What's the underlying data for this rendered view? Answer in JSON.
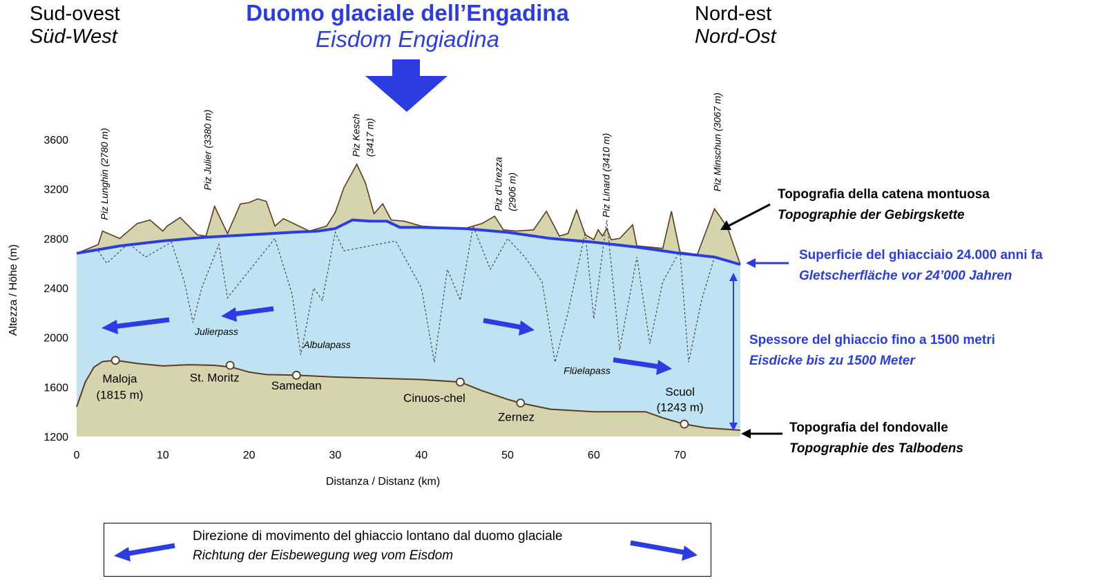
{
  "corner_left": {
    "it": "Sud-ovest",
    "de": "Süd-West"
  },
  "corner_right": {
    "it": "Nord-est",
    "de": "Nord-Ost"
  },
  "title": {
    "it": "Duomo glaciale dell’Engadina",
    "de": "Eisdom Engiadina"
  },
  "colors": {
    "ice": "#bfe3f2",
    "rock": "#d6d4ad",
    "outline": "#5b3a1e",
    "arrow": "#2b3de0",
    "axis": "#000000"
  },
  "annotations": {
    "mountain_topo": {
      "it": "Topografia della catena montuosa",
      "de": "Topographie der Gebirgskette"
    },
    "ice_surface": {
      "it": "Superficie del ghiacciaio 24.000 anni fa",
      "de": "Gletscherfläche vor 24’000 Jahren"
    },
    "ice_thickness": {
      "it": "Spessore del ghiaccio fino a 1500 metri",
      "de": "Eisdicke bis zu 1500 Meter"
    },
    "valley_topo": {
      "it": "Topografia del fondovalle",
      "de": "Topographie des Talbodens"
    }
  },
  "legend": {
    "it": "Direzione di movimento del ghiaccio lontano dal duomo glaciale",
    "de": "Richtung der Eisbewegung weg vom Eisdom"
  },
  "chart_data": {
    "type": "area",
    "xlabel": "Distanza / Distanz (km)",
    "ylabel": "Altezza / Höhe (m)",
    "xlim": [
      0,
      77
    ],
    "ylim": [
      1200,
      3600
    ],
    "xticks": [
      0,
      10,
      20,
      30,
      40,
      50,
      60,
      70
    ],
    "yticks": [
      1200,
      1600,
      2000,
      2400,
      2800,
      3200,
      3600
    ],
    "valley_floor": {
      "x": [
        0,
        1,
        2,
        3,
        4.5,
        7,
        10,
        13,
        16,
        18,
        20,
        22,
        25.5,
        30,
        35,
        40,
        44.5,
        47,
        50,
        51.5,
        55,
        60,
        66,
        68,
        70.5,
        73,
        77
      ],
      "y": [
        1440,
        1640,
        1760,
        1805,
        1815,
        1790,
        1770,
        1780,
        1775,
        1760,
        1720,
        1700,
        1695,
        1680,
        1670,
        1660,
        1640,
        1570,
        1500,
        1470,
        1420,
        1400,
        1400,
        1350,
        1300,
        1270,
        1250
      ]
    },
    "ice_surface": {
      "x": [
        0,
        5,
        10,
        15,
        20,
        25,
        28,
        30,
        32,
        34,
        36,
        37.5,
        40,
        45,
        50,
        55,
        60,
        65,
        70,
        74,
        77
      ],
      "y": [
        2680,
        2740,
        2780,
        2810,
        2830,
        2850,
        2860,
        2880,
        2950,
        2940,
        2940,
        2890,
        2890,
        2880,
        2850,
        2800,
        2770,
        2730,
        2680,
        2650,
        2590
      ]
    },
    "mountain_ridge": {
      "x": [
        0,
        2.5,
        3,
        5,
        7,
        8.5,
        10,
        10.5,
        12,
        14,
        15,
        16,
        17.5,
        19,
        20,
        21,
        22,
        23,
        24,
        27,
        29,
        30,
        31,
        32.5,
        33.5,
        34.5,
        35.5,
        36.5,
        38,
        40,
        45,
        47,
        48.5,
        49.5,
        51,
        53,
        54.5,
        56,
        57,
        58,
        59,
        60,
        60.5,
        61,
        61.5,
        62,
        63,
        64.5,
        65,
        68,
        69,
        70,
        72,
        74,
        75.5,
        77
      ],
      "y": [
        2680,
        2750,
        2860,
        2800,
        2920,
        2950,
        2860,
        2900,
        2970,
        2830,
        2820,
        3060,
        2840,
        3080,
        3090,
        3120,
        3100,
        2900,
        2960,
        2860,
        2900,
        3010,
        3210,
        3400,
        3250,
        3000,
        3080,
        2950,
        2940,
        2900,
        2880,
        2920,
        2980,
        2870,
        2860,
        2870,
        3020,
        2820,
        2840,
        3030,
        2830,
        2790,
        2870,
        2820,
        2880,
        2790,
        2800,
        2910,
        2740,
        2720,
        3020,
        2690,
        2670,
        3040,
        2890,
        2590
      ]
    },
    "cross_section_valleys": {
      "x": [
        2.5,
        3.5,
        6,
        8,
        11,
        12.5,
        13.5,
        14.5,
        16.5,
        17.5,
        23,
        25,
        26,
        27.5,
        28.5,
        30,
        31,
        37,
        40,
        41.5,
        43,
        44.5,
        46,
        48,
        50,
        52,
        54,
        55.5,
        57,
        59,
        60,
        61.5,
        63,
        65,
        66.5,
        68,
        70,
        71,
        72.5,
        74
      ],
      "y": [
        2700,
        2600,
        2760,
        2650,
        2770,
        2450,
        2120,
        2400,
        2750,
        2320,
        2800,
        2350,
        1860,
        2400,
        2300,
        2850,
        2700,
        2780,
        2400,
        1800,
        2550,
        2300,
        2900,
        2550,
        2800,
        2650,
        2450,
        1800,
        2200,
        2850,
        2150,
        2950,
        1900,
        2650,
        1950,
        2450,
        2700,
        1800,
        2300,
        2650
      ]
    },
    "peaks": [
      {
        "name": "Piz Lunghin (2780 m)",
        "x": 3.6,
        "label_y": 2950
      },
      {
        "name": "Piz Julier (3380 m)",
        "x": 15.6,
        "label_y": 3190
      },
      {
        "name": "Piz Kesch",
        "sub": "(3417 m)",
        "x": 32.8,
        "label_y": 3460
      },
      {
        "name": "Piz d’Urezza",
        "sub": "(2906 m)",
        "x": 49.3,
        "label_y": 3020
      },
      {
        "name": "Piz Linard (3410 m)",
        "x": 61.8,
        "label_y": 2970
      },
      {
        "name": "Piz Minschun (3067 m)",
        "x": 74.7,
        "label_y": 3180
      }
    ],
    "villages": [
      {
        "name": "Maloja",
        "sub": "(1815 m)",
        "x": 4.5,
        "y": 1815,
        "lx": 5,
        "ly": 1635,
        "ly2": 1505
      },
      {
        "name": "St. Moritz",
        "x": 17.8,
        "y": 1775,
        "lx": 16,
        "ly": 1645
      },
      {
        "name": "Samedan",
        "x": 25.5,
        "y": 1695,
        "lx": 25.5,
        "ly": 1580
      },
      {
        "name": "Cinuos-chel",
        "x": 44.5,
        "y": 1640,
        "lx": 41.5,
        "ly": 1480
      },
      {
        "name": "Zernez",
        "x": 51.5,
        "y": 1470,
        "lx": 51,
        "ly": 1325
      },
      {
        "name": "Scuol",
        "sub": "(1243 m)",
        "x": 70.5,
        "y": 1300,
        "lx": 70,
        "ly": 1530,
        "ly2": 1405
      }
    ],
    "passes": [
      {
        "name": "Julierpass",
        "x": 13.7,
        "y": 2020
      },
      {
        "name": "Albulapass",
        "x": 26.3,
        "y": 1915
      },
      {
        "name": "Flüelapass",
        "x": 56.5,
        "y": 1705
      }
    ]
  }
}
